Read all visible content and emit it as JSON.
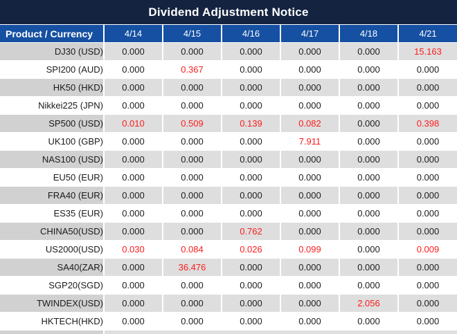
{
  "title": "Dividend Adjustment Notice",
  "table": {
    "header": {
      "product_label": "Product / Currency",
      "dates": [
        "4/14",
        "4/15",
        "4/16",
        "4/17",
        "4/18",
        "4/21"
      ]
    },
    "rows": [
      {
        "product": "DJ30 (USD)",
        "values": [
          "0.000",
          "0.000",
          "0.000",
          "0.000",
          "0.000",
          "15.163"
        ],
        "red": [
          5
        ]
      },
      {
        "product": "SPI200 (AUD)",
        "values": [
          "0.000",
          "0.367",
          "0.000",
          "0.000",
          "0.000",
          "0.000"
        ],
        "red": [
          1
        ]
      },
      {
        "product": "HK50 (HKD)",
        "values": [
          "0.000",
          "0.000",
          "0.000",
          "0.000",
          "0.000",
          "0.000"
        ],
        "red": []
      },
      {
        "product": "Nikkei225 (JPN)",
        "values": [
          "0.000",
          "0.000",
          "0.000",
          "0.000",
          "0.000",
          "0.000"
        ],
        "red": []
      },
      {
        "product": "SP500 (USD)",
        "values": [
          "0.010",
          "0.509",
          "0.139",
          "0.082",
          "0.000",
          "0.398"
        ],
        "red": [
          0,
          1,
          2,
          3,
          5
        ]
      },
      {
        "product": "UK100 (GBP)",
        "values": [
          "0.000",
          "0.000",
          "0.000",
          "7.911",
          "0.000",
          "0.000"
        ],
        "red": [
          3
        ]
      },
      {
        "product": "NAS100 (USD)",
        "values": [
          "0.000",
          "0.000",
          "0.000",
          "0.000",
          "0.000",
          "0.000"
        ],
        "red": []
      },
      {
        "product": "EU50 (EUR)",
        "values": [
          "0.000",
          "0.000",
          "0.000",
          "0.000",
          "0.000",
          "0.000"
        ],
        "red": []
      },
      {
        "product": "FRA40 (EUR)",
        "values": [
          "0.000",
          "0.000",
          "0.000",
          "0.000",
          "0.000",
          "0.000"
        ],
        "red": []
      },
      {
        "product": "ES35 (EUR)",
        "values": [
          "0.000",
          "0.000",
          "0.000",
          "0.000",
          "0.000",
          "0.000"
        ],
        "red": []
      },
      {
        "product": "CHINA50(USD)",
        "values": [
          "0.000",
          "0.000",
          "0.762",
          "0.000",
          "0.000",
          "0.000"
        ],
        "red": [
          2
        ]
      },
      {
        "product": "US2000(USD)",
        "values": [
          "0.030",
          "0.084",
          "0.026",
          "0.099",
          "0.000",
          "0.009"
        ],
        "red": [
          0,
          1,
          2,
          3,
          5
        ]
      },
      {
        "product": "SA40(ZAR)",
        "values": [
          "0.000",
          "36.476",
          "0.000",
          "0.000",
          "0.000",
          "0.000"
        ],
        "red": [
          1
        ]
      },
      {
        "product": "SGP20(SGD)",
        "values": [
          "0.000",
          "0.000",
          "0.000",
          "0.000",
          "0.000",
          "0.000"
        ],
        "red": []
      },
      {
        "product": "TWINDEX(USD)",
        "values": [
          "0.000",
          "0.000",
          "0.000",
          "0.000",
          "2.056",
          "0.000"
        ],
        "red": [
          4
        ]
      },
      {
        "product": "HKTECH(HKD)",
        "values": [
          "0.000",
          "0.000",
          "0.000",
          "0.000",
          "0.000",
          "0.000"
        ],
        "red": []
      }
    ]
  },
  "colors": {
    "title_bg": "#142340",
    "header_bg": "#1550a2",
    "product_alt_bg": "#d1d1d1",
    "value_alt_bg": "#dedede",
    "highlight": "#fb1c1c",
    "text": "#1b1b1b"
  }
}
